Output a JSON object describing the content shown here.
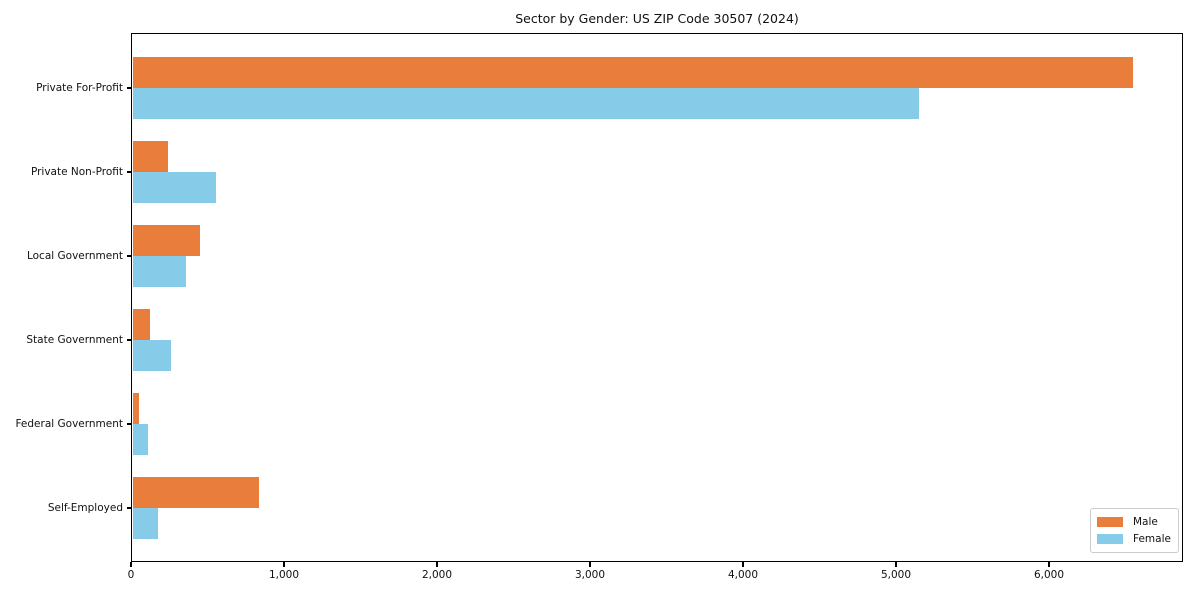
{
  "chart_data": {
    "type": "bar",
    "orientation": "horizontal",
    "title": "Sector by Gender: US ZIP Code 30507 (2024)",
    "categories": [
      "Private For-Profit",
      "Private Non-Profit",
      "Local Government",
      "State Government",
      "Federal Government",
      "Self-Employed"
    ],
    "series": [
      {
        "name": "Male",
        "color": "#E87D3C",
        "values": [
          6550,
          240,
          450,
          125,
          50,
          835
        ]
      },
      {
        "name": "Female",
        "color": "#86CCE8",
        "values": [
          5150,
          555,
          360,
          260,
          110,
          175
        ]
      }
    ],
    "xlabel": "",
    "ylabel": "",
    "xlim": [
      0,
      6880
    ],
    "xticks": [
      0,
      1000,
      2000,
      3000,
      4000,
      5000,
      6000
    ],
    "xtick_labels": [
      "0",
      "1,000",
      "2,000",
      "3,000",
      "4,000",
      "5,000",
      "6,000"
    ],
    "grid": false,
    "legend_position": "lower right",
    "legend_labels": [
      "Male",
      "Female"
    ]
  },
  "colors": {
    "male": "#E87D3C",
    "female": "#86CCE8",
    "frame": "#000000",
    "text": "#111111",
    "legend_border": "#cccccc",
    "background": "#ffffff"
  }
}
